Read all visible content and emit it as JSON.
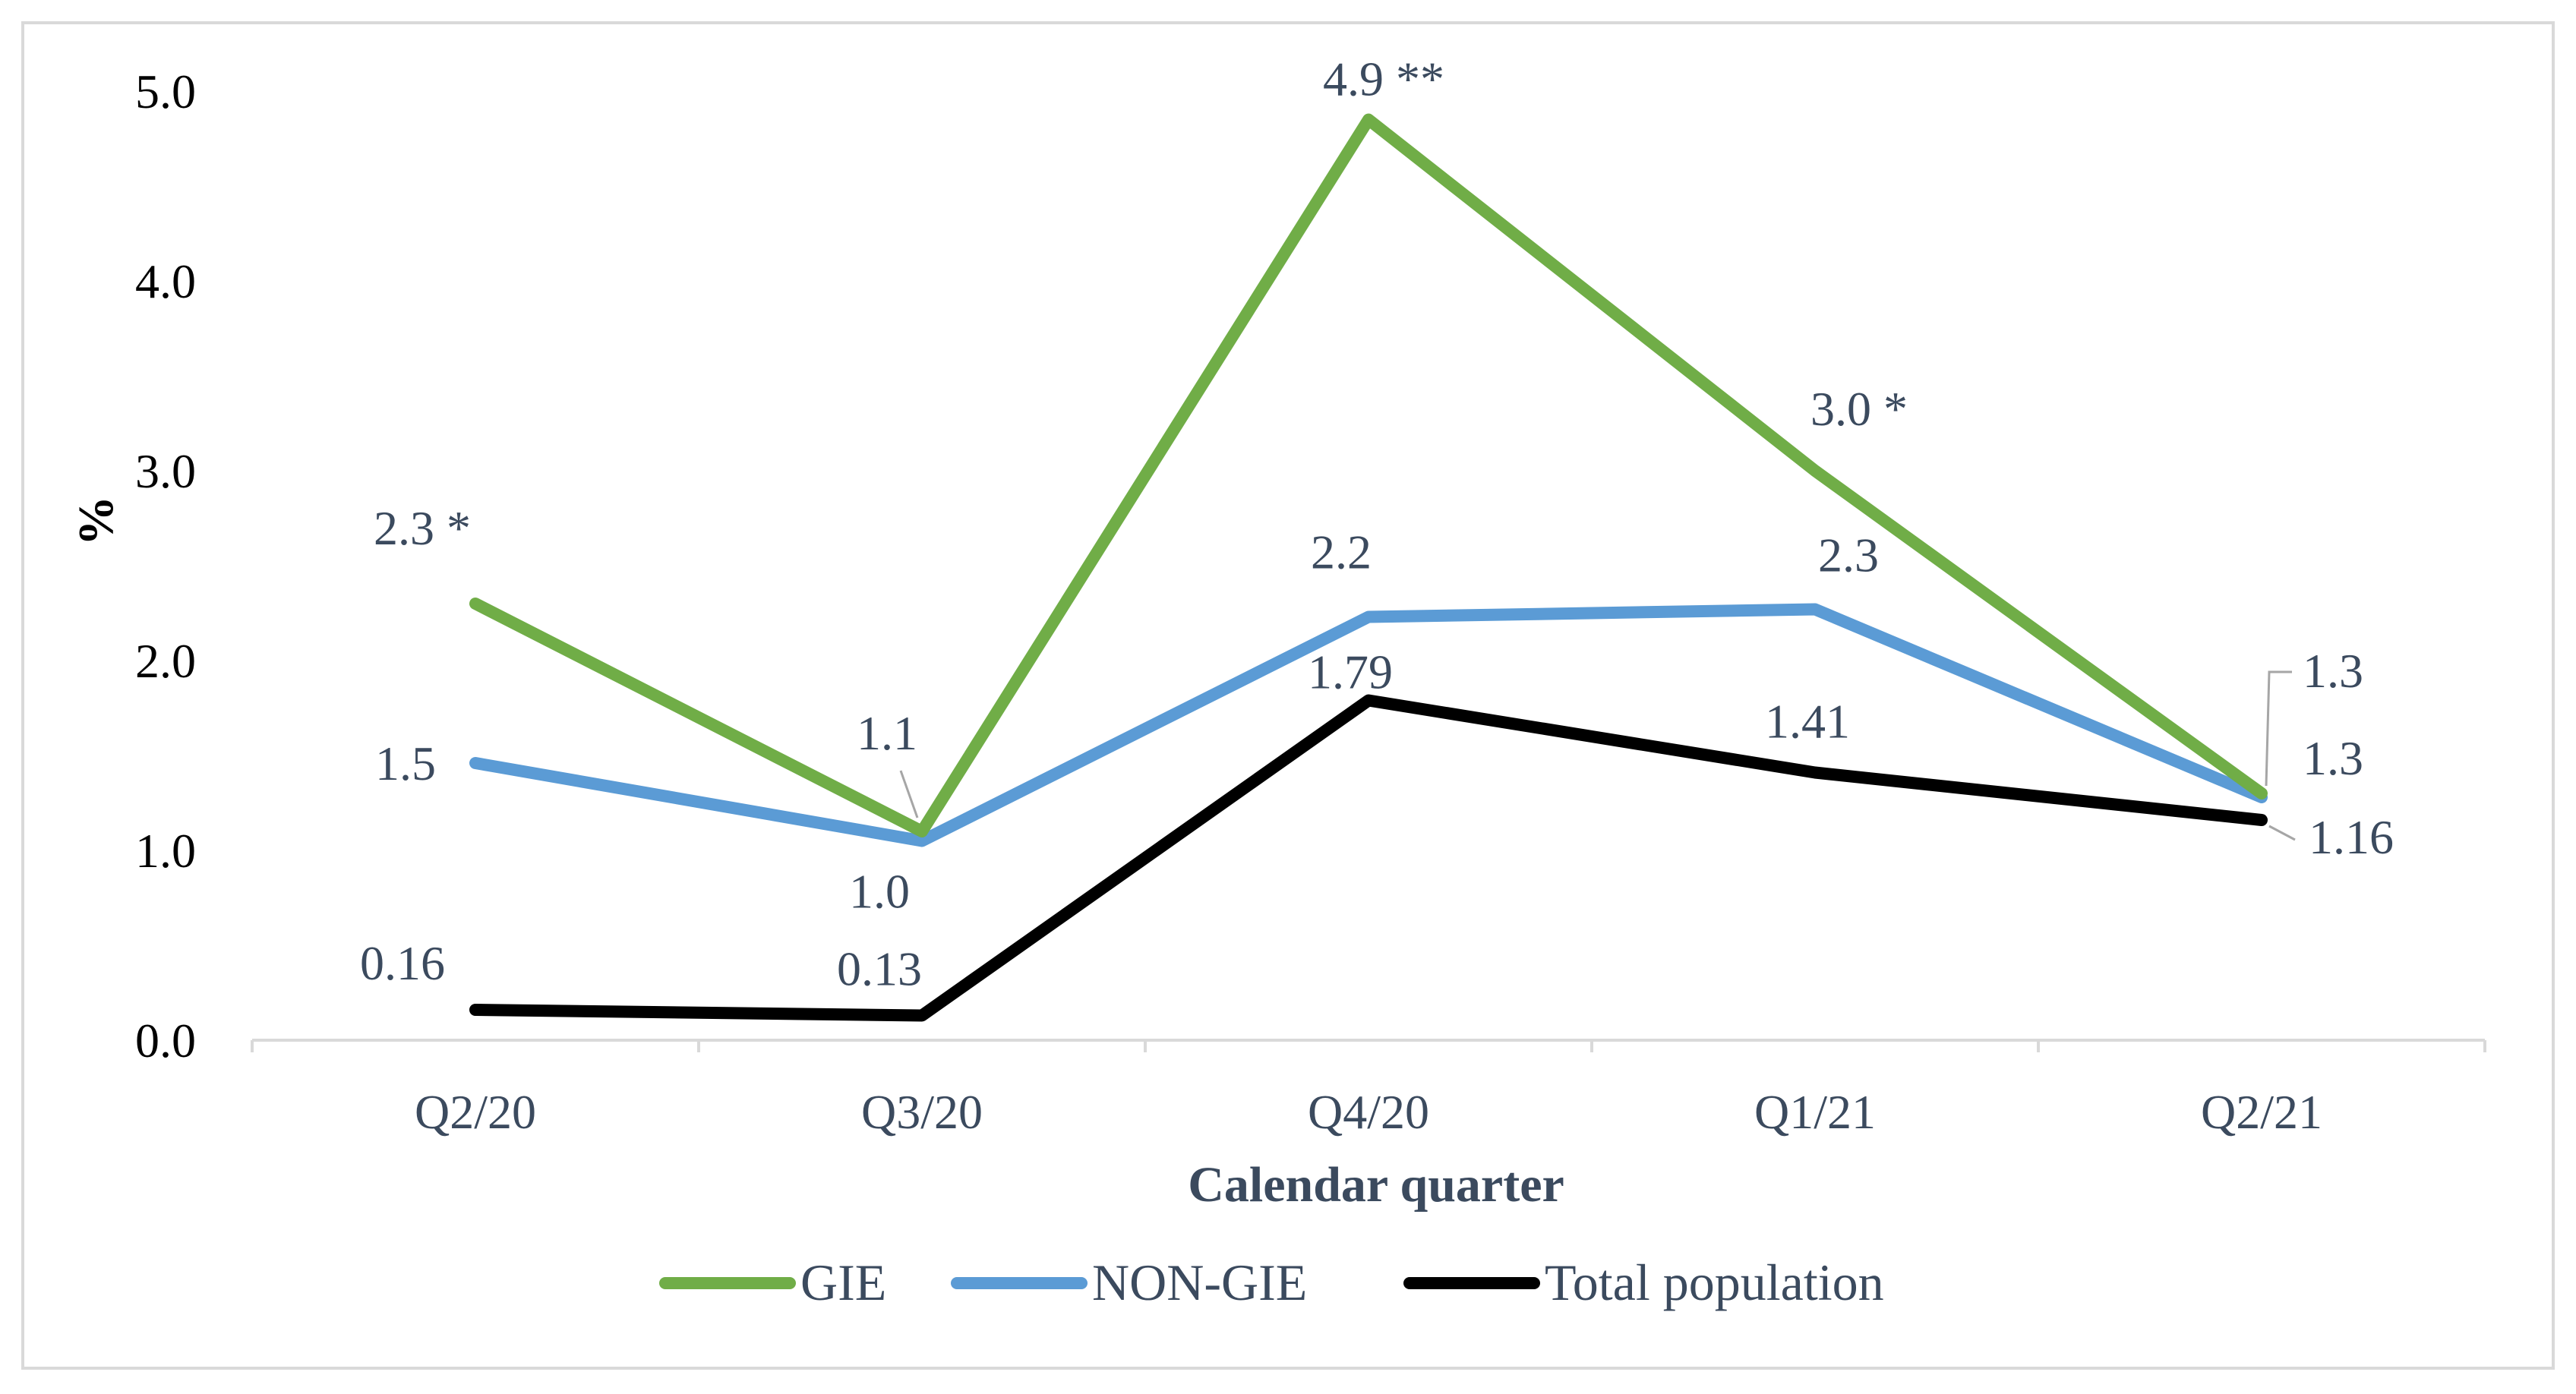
{
  "chart_data": {
    "type": "line",
    "categories": [
      "Q2/20",
      "Q3/20",
      "Q4/20",
      "Q1/21",
      "Q2/21"
    ],
    "xlabel": "Calendar quarter",
    "ylabel": "%",
    "ylim": [
      0,
      5
    ],
    "yticks": [
      "0.0",
      "1.0",
      "2.0",
      "3.0",
      "4.0",
      "5.0"
    ],
    "legend_position": "bottom",
    "grid": false,
    "series": [
      {
        "name": "GIE",
        "color": "#70ad47",
        "values": [
          2.3,
          1.1,
          4.85,
          3.0,
          1.3
        ],
        "labels": [
          "2.3 *",
          "1.1",
          "4.9 **",
          "3.0 *",
          "1.3"
        ]
      },
      {
        "name": "NON-GIE",
        "color": "#5b9bd5",
        "values": [
          1.46,
          1.05,
          2.23,
          2.27,
          1.28
        ],
        "labels": [
          "1.5",
          "1.0",
          "2.2",
          "2.3",
          "1.3"
        ]
      },
      {
        "name": "Total population",
        "color": "#000000",
        "values": [
          0.16,
          0.13,
          1.79,
          1.41,
          1.16
        ],
        "labels": [
          "0.16",
          "0.13",
          "1.79",
          "1.41",
          "1.16"
        ]
      }
    ]
  }
}
